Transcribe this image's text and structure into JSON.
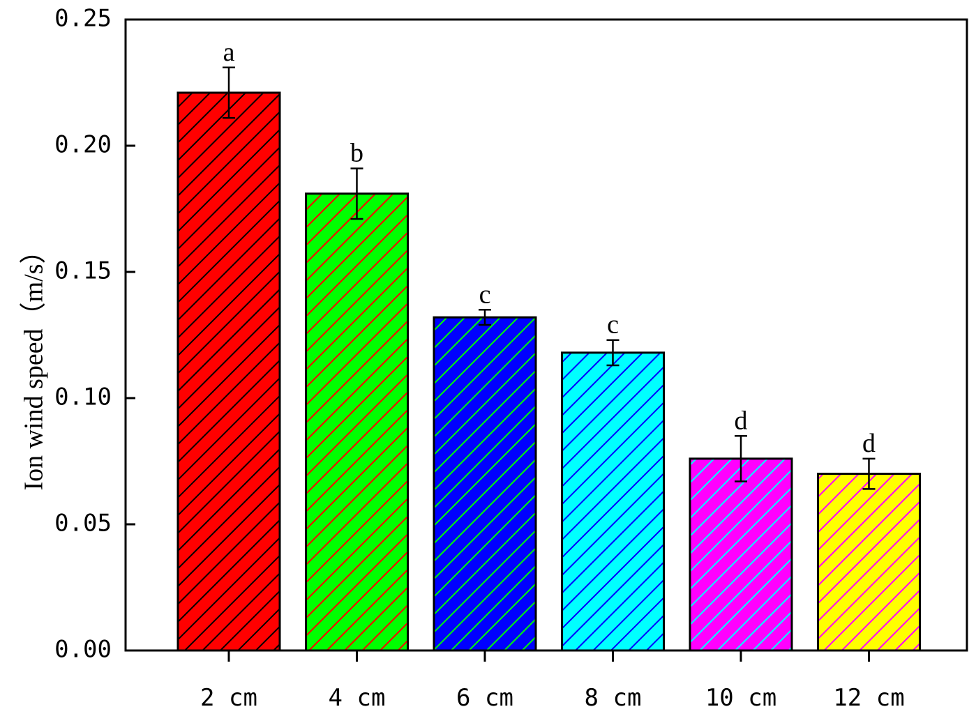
{
  "chart_data": {
    "type": "bar",
    "title": "",
    "xlabel": "",
    "ylabel": "Ion wind speed（m/s）",
    "ylim": [
      0,
      0.25
    ],
    "yticks": [
      "0.00",
      "0.05",
      "0.10",
      "0.15",
      "0.20",
      "0.25"
    ],
    "categories": [
      "2 cm",
      "4 cm",
      "6 cm",
      "8 cm",
      "10 cm",
      "12 cm"
    ],
    "values": [
      0.221,
      0.181,
      0.132,
      0.118,
      0.076,
      0.07
    ],
    "errors": [
      0.01,
      0.01,
      0.003,
      0.005,
      0.009,
      0.006
    ],
    "significance_letters": [
      "a",
      "b",
      "c",
      "c",
      "d",
      "d"
    ],
    "bar_colors": [
      "#ff0000",
      "#00ff00",
      "#0000ff",
      "#00ffff",
      "#ff00ff",
      "#ffff00"
    ],
    "hatch_colors": [
      "#000000",
      "#ff0000",
      "#00ff00",
      "#0000ff",
      "#00ffff",
      "#ff00ff"
    ],
    "grid": false,
    "legend": "none"
  }
}
